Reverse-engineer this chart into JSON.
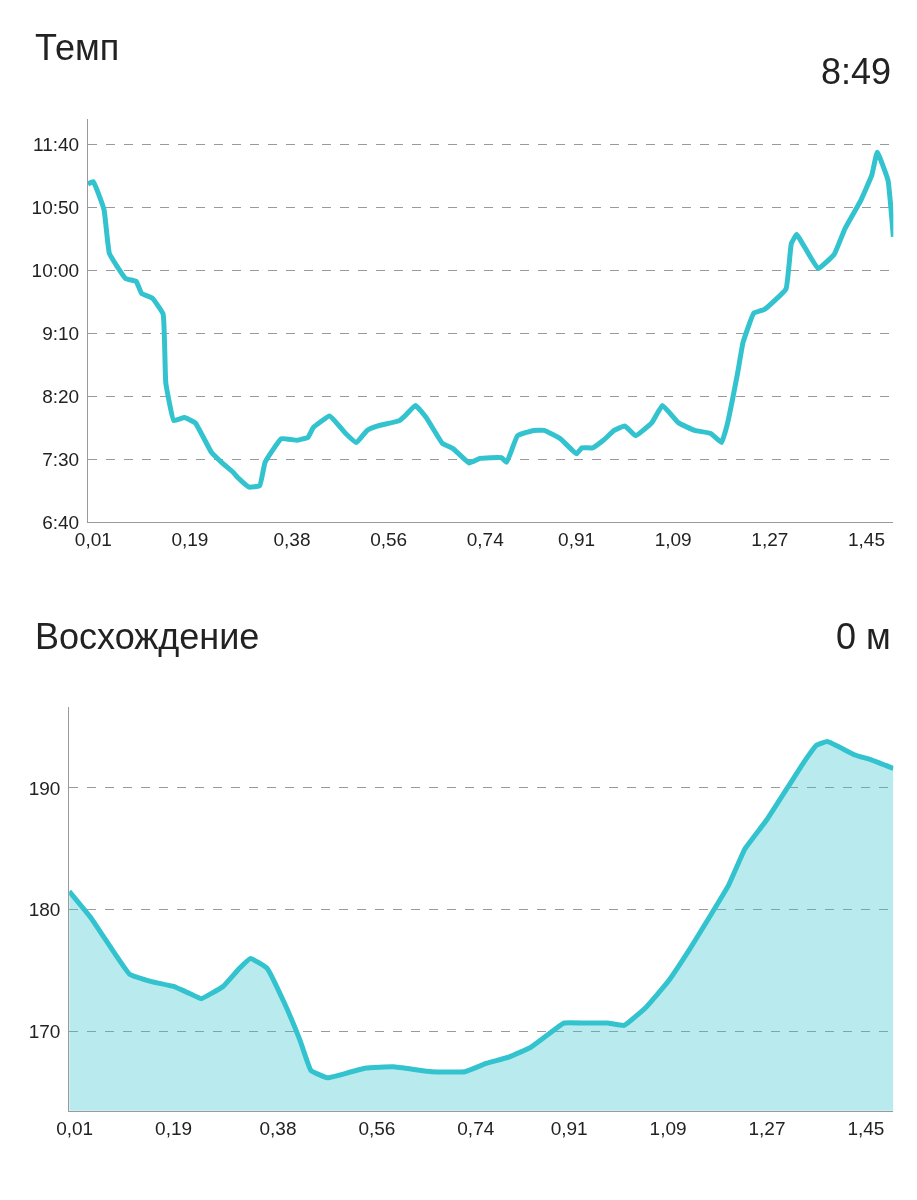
{
  "chart_data": [
    {
      "type": "line",
      "title": "Темп",
      "annotations": [
        "8:49"
      ],
      "x": [
        0.0,
        0.01,
        0.03,
        0.04,
        0.07,
        0.09,
        0.1,
        0.12,
        0.14,
        0.145,
        0.16,
        0.18,
        0.2,
        0.23,
        0.25,
        0.27,
        0.28,
        0.3,
        0.32,
        0.33,
        0.36,
        0.39,
        0.41,
        0.42,
        0.45,
        0.48,
        0.5,
        0.52,
        0.54,
        0.58,
        0.59,
        0.61,
        0.63,
        0.66,
        0.68,
        0.71,
        0.73,
        0.75,
        0.77,
        0.78,
        0.8,
        0.83,
        0.85,
        0.88,
        0.91,
        0.92,
        0.94,
        0.96,
        0.98,
        1.0,
        1.02,
        1.05,
        1.07,
        1.1,
        1.13,
        1.16,
        1.18,
        1.19,
        1.21,
        1.22,
        1.24,
        1.26,
        1.3,
        1.31,
        1.32,
        1.36,
        1.39,
        1.41,
        1.44,
        1.46,
        1.47,
        1.49,
        1.5
      ],
      "series": [
        {
          "color": "#33c3cf",
          "values": [
            11.14,
            11.17,
            10.8,
            10.22,
            9.89,
            9.85,
            9.69,
            9.63,
            9.42,
            8.51,
            8.01,
            8.05,
            7.98,
            7.59,
            7.45,
            7.33,
            7.25,
            7.13,
            7.15,
            7.46,
            7.77,
            7.75,
            7.79,
            7.92,
            8.07,
            7.84,
            7.72,
            7.88,
            7.94,
            8.01,
            8.07,
            8.21,
            8.05,
            7.71,
            7.64,
            7.45,
            7.51,
            7.52,
            7.52,
            7.46,
            7.81,
            7.88,
            7.88,
            7.77,
            7.57,
            7.65,
            7.65,
            7.75,
            7.88,
            7.94,
            7.81,
            7.98,
            8.21,
            7.98,
            7.88,
            7.84,
            7.72,
            7.94,
            8.64,
            9.04,
            9.43,
            9.48,
            9.75,
            10.35,
            10.47,
            10.02,
            10.21,
            10.55,
            10.93,
            11.26,
            11.56,
            11.19,
            10.44
          ]
        }
      ],
      "xlim": [
        0,
        1.5
      ],
      "xticks": [
        {
          "value": 0.01,
          "label": "0,01"
        },
        {
          "value": 0.19,
          "label": "0,19"
        },
        {
          "value": 0.38,
          "label": "0,38"
        },
        {
          "value": 0.56,
          "label": "0,56"
        },
        {
          "value": 0.74,
          "label": "0,74"
        },
        {
          "value": 0.91,
          "label": "0,91"
        },
        {
          "value": 1.09,
          "label": "1,09"
        },
        {
          "value": 1.27,
          "label": "1,27"
        },
        {
          "value": 1.45,
          "label": "1,45"
        }
      ],
      "ylim": [
        6.6667,
        12.0
      ],
      "yticks": [
        {
          "value": 6.6667,
          "label": "6:40"
        },
        {
          "value": 7.5,
          "label": "7:30"
        },
        {
          "value": 8.3333,
          "label": "8:20"
        },
        {
          "value": 9.1667,
          "label": "9:10"
        },
        {
          "value": 10.0,
          "label": "10:00"
        },
        {
          "value": 10.8333,
          "label": "10:50"
        },
        {
          "value": 11.6667,
          "label": "11:40"
        }
      ],
      "grid": "y",
      "marker": "none",
      "line_style": "solid"
    },
    {
      "type": "area",
      "title": "Восхождение",
      "annotations": [
        "0 м"
      ],
      "x": [
        0.0,
        0.04,
        0.08,
        0.11,
        0.15,
        0.19,
        0.22,
        0.24,
        0.28,
        0.31,
        0.33,
        0.36,
        0.39,
        0.42,
        0.44,
        0.47,
        0.49,
        0.54,
        0.59,
        0.66,
        0.72,
        0.76,
        0.8,
        0.84,
        0.87,
        0.9,
        0.94,
        0.98,
        1.01,
        1.05,
        1.09,
        1.13,
        1.16,
        1.2,
        1.23,
        1.27,
        1.31,
        1.34,
        1.36,
        1.38,
        1.43,
        1.46,
        1.5
      ],
      "series": [
        {
          "color": "#33c3cf",
          "values": [
            181.5,
            179.3,
            176.6,
            174.7,
            174.1,
            173.7,
            173.1,
            172.7,
            173.7,
            175.2,
            176.0,
            175.2,
            172.5,
            169.3,
            166.8,
            166.2,
            166.4,
            167.0,
            167.1,
            166.7,
            166.7,
            167.4,
            167.9,
            168.7,
            169.7,
            170.7,
            170.7,
            170.7,
            170.5,
            172.0,
            174.1,
            176.8,
            179.0,
            182.0,
            185.0,
            187.4,
            190.2,
            192.3,
            193.5,
            193.8,
            192.7,
            192.3,
            191.6
          ]
        }
      ],
      "xlim": [
        0,
        1.5
      ],
      "xticks": [
        {
          "value": 0.01,
          "label": "0,01"
        },
        {
          "value": 0.19,
          "label": "0,19"
        },
        {
          "value": 0.38,
          "label": "0,38"
        },
        {
          "value": 0.56,
          "label": "0,56"
        },
        {
          "value": 0.74,
          "label": "0,74"
        },
        {
          "value": 0.91,
          "label": "0,91"
        },
        {
          "value": 1.09,
          "label": "1,09"
        },
        {
          "value": 1.27,
          "label": "1,27"
        },
        {
          "value": 1.45,
          "label": "1,45"
        }
      ],
      "ylim": [
        163.5,
        196.6
      ],
      "yticks": [
        170,
        180,
        190
      ],
      "grid": "y",
      "marker": "none",
      "line_style": "solid"
    }
  ]
}
